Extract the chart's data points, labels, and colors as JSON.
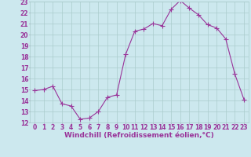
{
  "x": [
    0,
    1,
    2,
    3,
    4,
    5,
    6,
    7,
    8,
    9,
    10,
    11,
    12,
    13,
    14,
    15,
    16,
    17,
    18,
    19,
    20,
    21,
    22,
    23
  ],
  "y": [
    14.9,
    15.0,
    15.3,
    13.7,
    13.5,
    12.3,
    12.4,
    13.0,
    14.3,
    14.5,
    18.2,
    20.3,
    20.5,
    21.0,
    20.8,
    22.3,
    23.1,
    22.4,
    21.8,
    20.9,
    20.6,
    19.6,
    16.4,
    14.1
  ],
  "line_color": "#993399",
  "marker": "+",
  "marker_size": 4,
  "bg_color": "#cce8ee",
  "grid_color": "#aacccc",
  "xlabel": "Windchill (Refroidissement éolien,°C)",
  "xlim": [
    -0.5,
    23.5
  ],
  "ylim": [
    12,
    23
  ],
  "yticks": [
    12,
    13,
    14,
    15,
    16,
    17,
    18,
    19,
    20,
    21,
    22,
    23
  ],
  "xticks": [
    0,
    1,
    2,
    3,
    4,
    5,
    6,
    7,
    8,
    9,
    10,
    11,
    12,
    13,
    14,
    15,
    16,
    17,
    18,
    19,
    20,
    21,
    22,
    23
  ],
  "tick_fontsize": 5.5,
  "xlabel_fontsize": 6.5,
  "tick_color": "#993399",
  "label_color": "#993399",
  "line_width": 0.8
}
